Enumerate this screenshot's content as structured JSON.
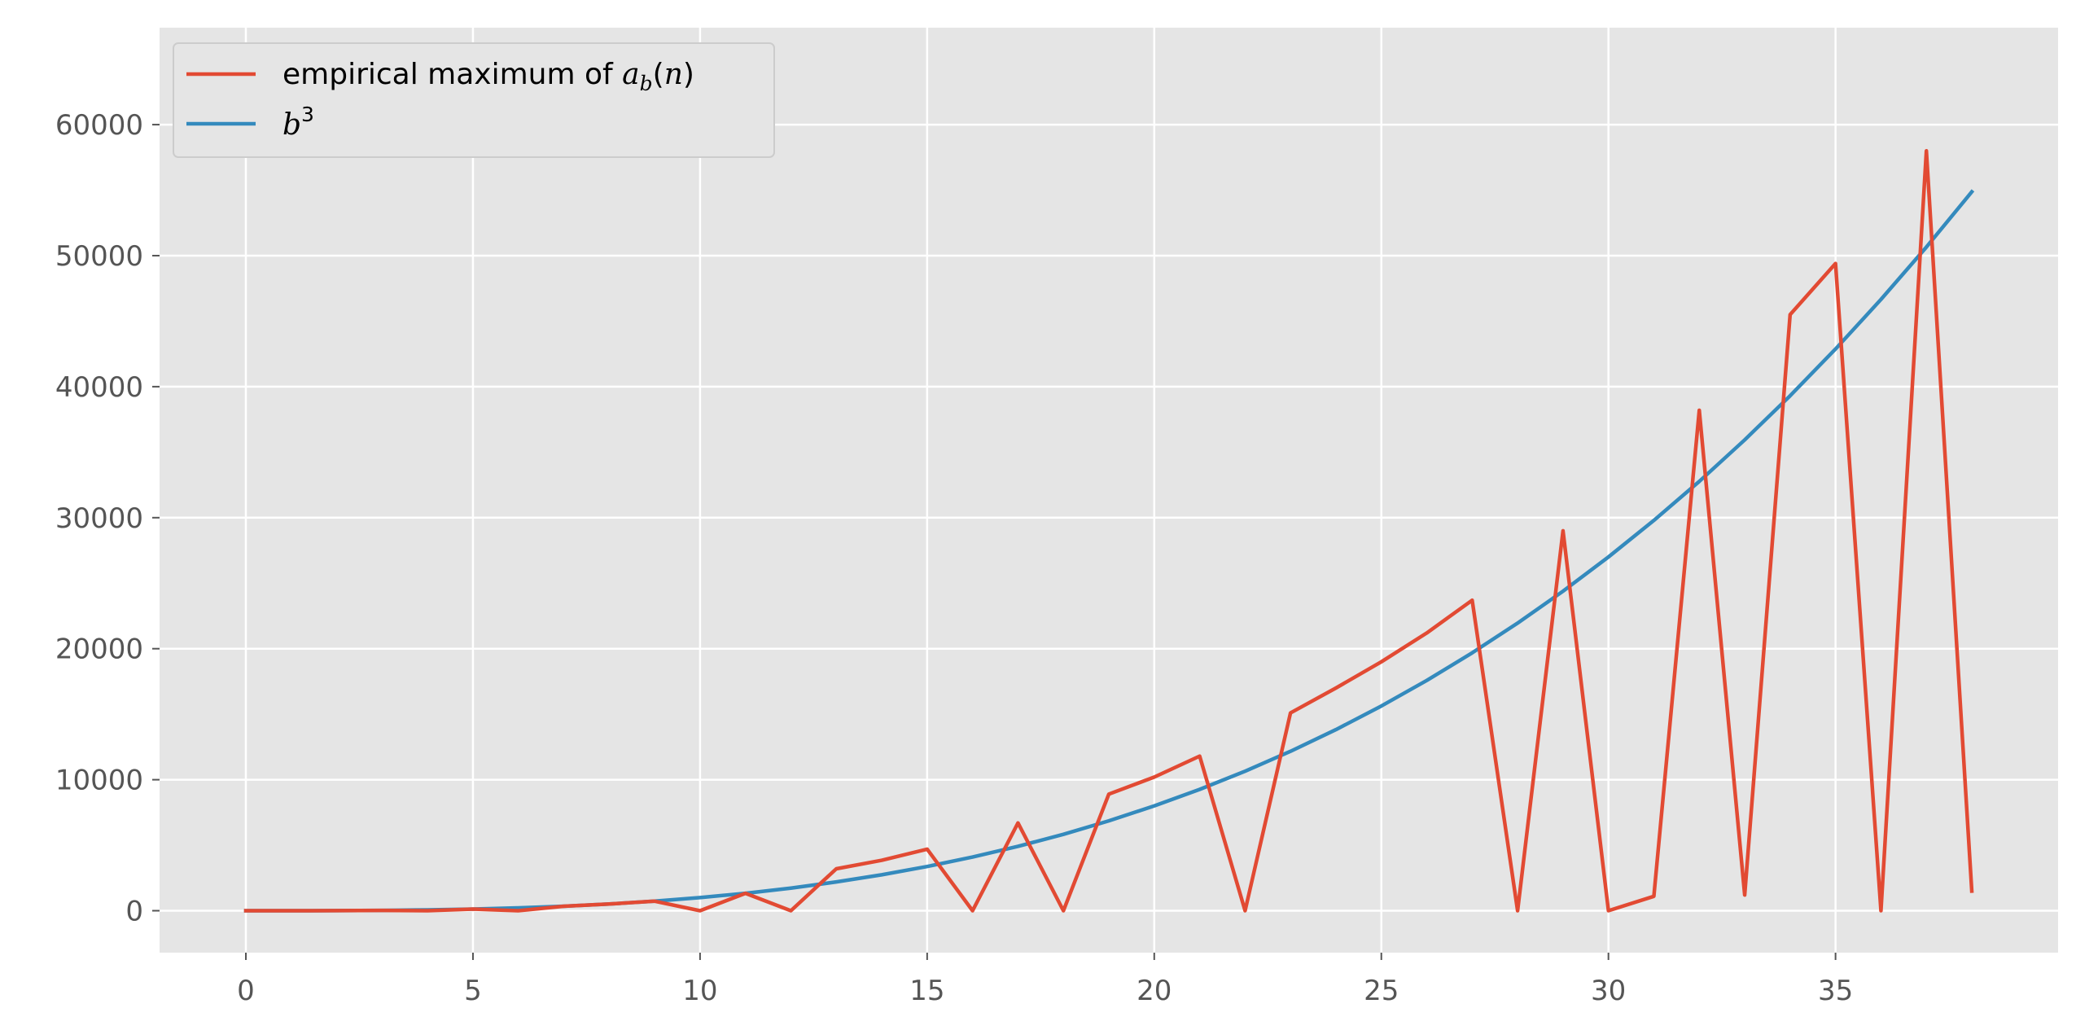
{
  "chart_data": {
    "type": "line",
    "title": "",
    "xlabel": "",
    "ylabel": "",
    "xlim": [
      -1.9,
      39.9
    ],
    "ylim": [
      -3200,
      67400
    ],
    "grid": true,
    "legend_position": "top-left",
    "x_ticks": [
      0,
      5,
      10,
      15,
      20,
      25,
      30,
      35
    ],
    "x_tick_labels": [
      "0",
      "5",
      "10",
      "15",
      "20",
      "25",
      "30",
      "35"
    ],
    "y_ticks": [
      0,
      10000,
      20000,
      30000,
      40000,
      50000,
      60000
    ],
    "y_tick_labels": [
      "0",
      "10000",
      "20000",
      "30000",
      "40000",
      "50000",
      "60000"
    ],
    "x": [
      0,
      1,
      2,
      3,
      4,
      5,
      6,
      7,
      8,
      9,
      10,
      11,
      12,
      13,
      14,
      15,
      16,
      17,
      18,
      19,
      20,
      21,
      22,
      23,
      24,
      25,
      26,
      27,
      28,
      29,
      30,
      31,
      32,
      33,
      34,
      35,
      36,
      37,
      38
    ],
    "series": [
      {
        "name_main": "empirical maximum of ",
        "name_math": "a",
        "name_sub": "b",
        "name_paren_open": "(",
        "name_arg": "n",
        "name_paren_close": ")",
        "color": "#E24A33",
        "values": [
          0,
          1,
          8,
          27,
          0,
          125,
          0,
          343,
          512,
          729,
          0,
          1331,
          0,
          3200,
          3850,
          4700,
          0,
          6700,
          0,
          8900,
          10200,
          11800,
          0,
          15100,
          17000,
          19000,
          21200,
          23700,
          0,
          29000,
          0,
          1100,
          38200,
          1200,
          45500,
          49400,
          0,
          58000,
          1500
        ]
      },
      {
        "name_math": "b",
        "name_sup": "3",
        "color": "#348ABD",
        "values": [
          0,
          1,
          8,
          27,
          64,
          125,
          216,
          343,
          512,
          729,
          1000,
          1331,
          1728,
          2197,
          2744,
          3375,
          4096,
          4913,
          5832,
          6859,
          8000,
          9261,
          10648,
          12167,
          13824,
          15625,
          17576,
          19683,
          21952,
          24389,
          27000,
          29791,
          32768,
          35937,
          39304,
          42875,
          46656,
          50653,
          54872
        ]
      }
    ]
  }
}
